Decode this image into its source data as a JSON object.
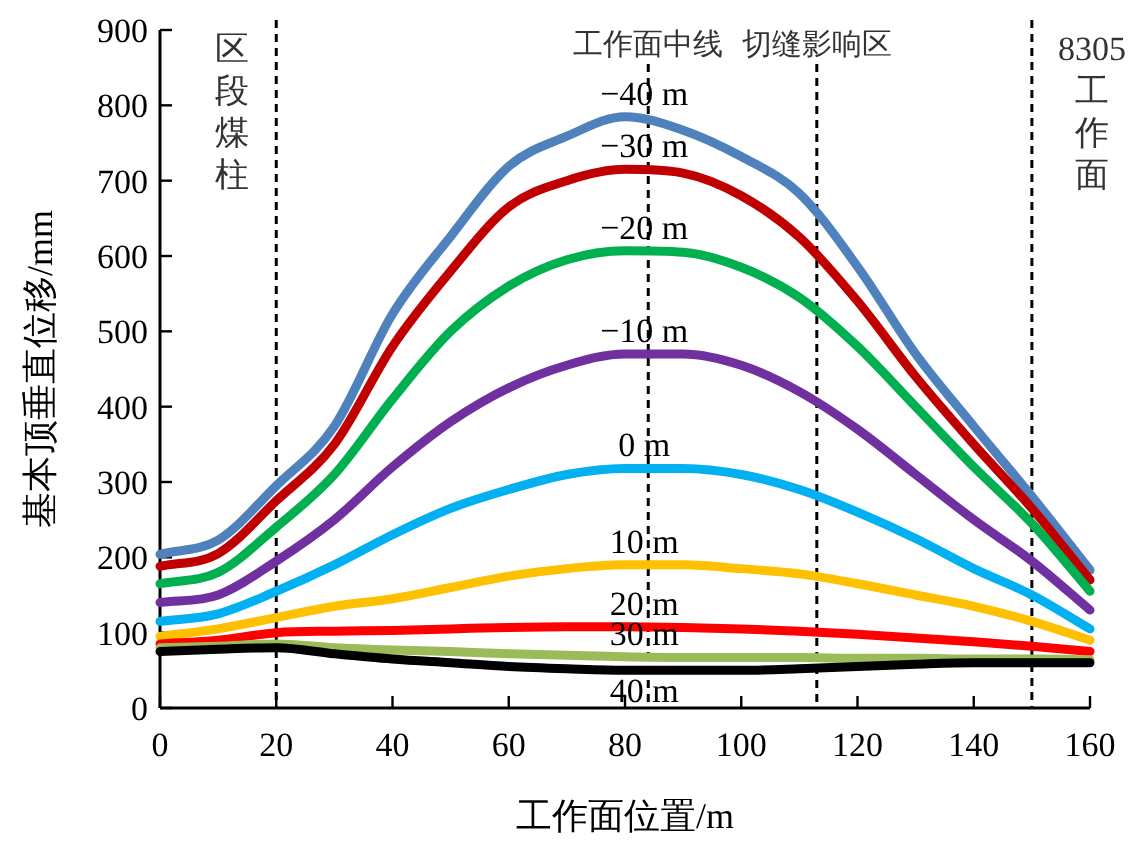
{
  "chart_data": {
    "type": "line",
    "xlabel": "工作面位置/m",
    "ylabel": "基本顶垂直位移/mm",
    "x": [
      0,
      10,
      20,
      30,
      40,
      50,
      60,
      70,
      80,
      90,
      100,
      110,
      120,
      130,
      140,
      150,
      160
    ],
    "xlim": [
      0,
      160
    ],
    "xticks": [
      0,
      20,
      40,
      60,
      80,
      100,
      120,
      140,
      160
    ],
    "ylim": [
      0,
      900
    ],
    "yticks": [
      0,
      100,
      200,
      300,
      400,
      500,
      600,
      700,
      800,
      900
    ],
    "line_style": "solid",
    "marker": "none",
    "series": [
      {
        "name": "−40 m",
        "color": "#4f81bd",
        "values": [
          204,
          223,
          295,
          374,
          523,
          626,
          719,
          759,
          785,
          767,
          732,
          683,
          586,
          470,
          374,
          281,
          183
        ]
      },
      {
        "name": "−30 m",
        "color": "#c00000",
        "values": [
          188,
          205,
          275,
          350,
          480,
          580,
          665,
          700,
          715,
          710,
          680,
          625,
          540,
          440,
          350,
          265,
          170
        ]
      },
      {
        "name": "−20 m",
        "color": "#00b050",
        "values": [
          165,
          180,
          240,
          310,
          410,
          500,
          560,
          595,
          607,
          605,
          585,
          545,
          480,
          400,
          320,
          245,
          155
        ]
      },
      {
        "name": "−10 m",
        "color": "#7030a0",
        "values": [
          140,
          150,
          195,
          250,
          320,
          380,
          425,
          455,
          470,
          470,
          455,
          420,
          370,
          310,
          250,
          195,
          130
        ]
      },
      {
        "name": "0 m",
        "color": "#00b0f0",
        "values": [
          115,
          125,
          155,
          190,
          230,
          265,
          290,
          310,
          318,
          318,
          310,
          290,
          260,
          225,
          185,
          150,
          105
        ]
      },
      {
        "name": "10 m",
        "color": "#ffc000",
        "values": [
          95,
          105,
          120,
          135,
          145,
          160,
          175,
          185,
          190,
          190,
          185,
          178,
          165,
          150,
          135,
          115,
          90
        ]
      },
      {
        "name": "20 m",
        "color": "#ff0000",
        "values": [
          85,
          90,
          100,
          102,
          103,
          105,
          107,
          108,
          108,
          107,
          105,
          102,
          98,
          93,
          88,
          82,
          75
        ]
      },
      {
        "name": "30 m",
        "color": "#9bbb59",
        "values": [
          80,
          82,
          85,
          80,
          77,
          75,
          72,
          70,
          68,
          67,
          67,
          67,
          66,
          66,
          65,
          65,
          64
        ]
      },
      {
        "name": "40 m",
        "color": "#000000",
        "values": [
          75,
          78,
          80,
          72,
          65,
          60,
          55,
          52,
          50,
          50,
          50,
          52,
          55,
          58,
          60,
          60,
          60
        ]
      }
    ],
    "ref_lines": [
      {
        "axis": "x",
        "value": 20,
        "label": "区段煤柱",
        "line_style": "dashed",
        "color": "#000000"
      },
      {
        "axis": "x",
        "value": 84,
        "label": "工作面中线",
        "line_style": "dashed",
        "color": "#000000"
      },
      {
        "axis": "x",
        "value": 113,
        "label": "切缝影响区",
        "line_style": "dashed",
        "color": "#000000"
      },
      {
        "axis": "x",
        "value": 150,
        "label": "8305工作面",
        "line_style": "dashed",
        "color": "#000000"
      }
    ]
  }
}
